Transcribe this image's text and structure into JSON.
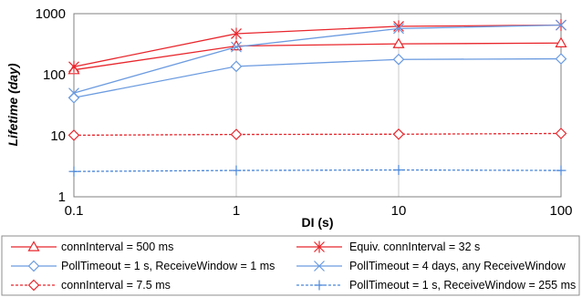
{
  "chart_data": {
    "type": "line",
    "xlabel": "DI (s)",
    "ylabel": "Lifetime (day)",
    "x_scale": "log",
    "y_scale": "log",
    "xlim": [
      0.1,
      100
    ],
    "ylim": [
      1,
      1000
    ],
    "x_ticks": [
      "0.1",
      "1",
      "10",
      "100"
    ],
    "y_ticks": [
      "1",
      "10",
      "100",
      "1000"
    ],
    "grid": "vertical",
    "legend_position": "bottom",
    "x": [
      0.1,
      1,
      10,
      100
    ],
    "series": [
      {
        "name": "connInterval = 500 ms",
        "color": "#e8262c",
        "marker": "triangle",
        "dash": "solid",
        "values": [
          120,
          295,
          320,
          330
        ]
      },
      {
        "name": "Equiv. connInterval = 32 s",
        "color": "#e8262c",
        "marker": "asterisk",
        "dash": "solid",
        "values": [
          135,
          470,
          620,
          650
        ]
      },
      {
        "name": "PollTimeout = 1 s, ReceiveWindow = 1 ms",
        "color": "#6b9be0",
        "marker": "diamond",
        "dash": "solid",
        "values": [
          42,
          137,
          178,
          182
        ]
      },
      {
        "name": "PollTimeout = 4 days, any ReceiveWindow",
        "color": "#6b9be0",
        "marker": "cross",
        "dash": "solid",
        "values": [
          50,
          285,
          570,
          650
        ]
      },
      {
        "name": "connInterval = 7.5 ms",
        "color": "#e8262c",
        "marker": "diamond",
        "dash": "dashed",
        "values": [
          10.2,
          10.5,
          10.6,
          10.9
        ]
      },
      {
        "name": "PollTimeout = 1 s, ReceiveWindow = 255 ms",
        "color": "#4a86d8",
        "marker": "plus",
        "dash": "dashed",
        "values": [
          2.6,
          2.7,
          2.75,
          2.7
        ]
      }
    ]
  }
}
